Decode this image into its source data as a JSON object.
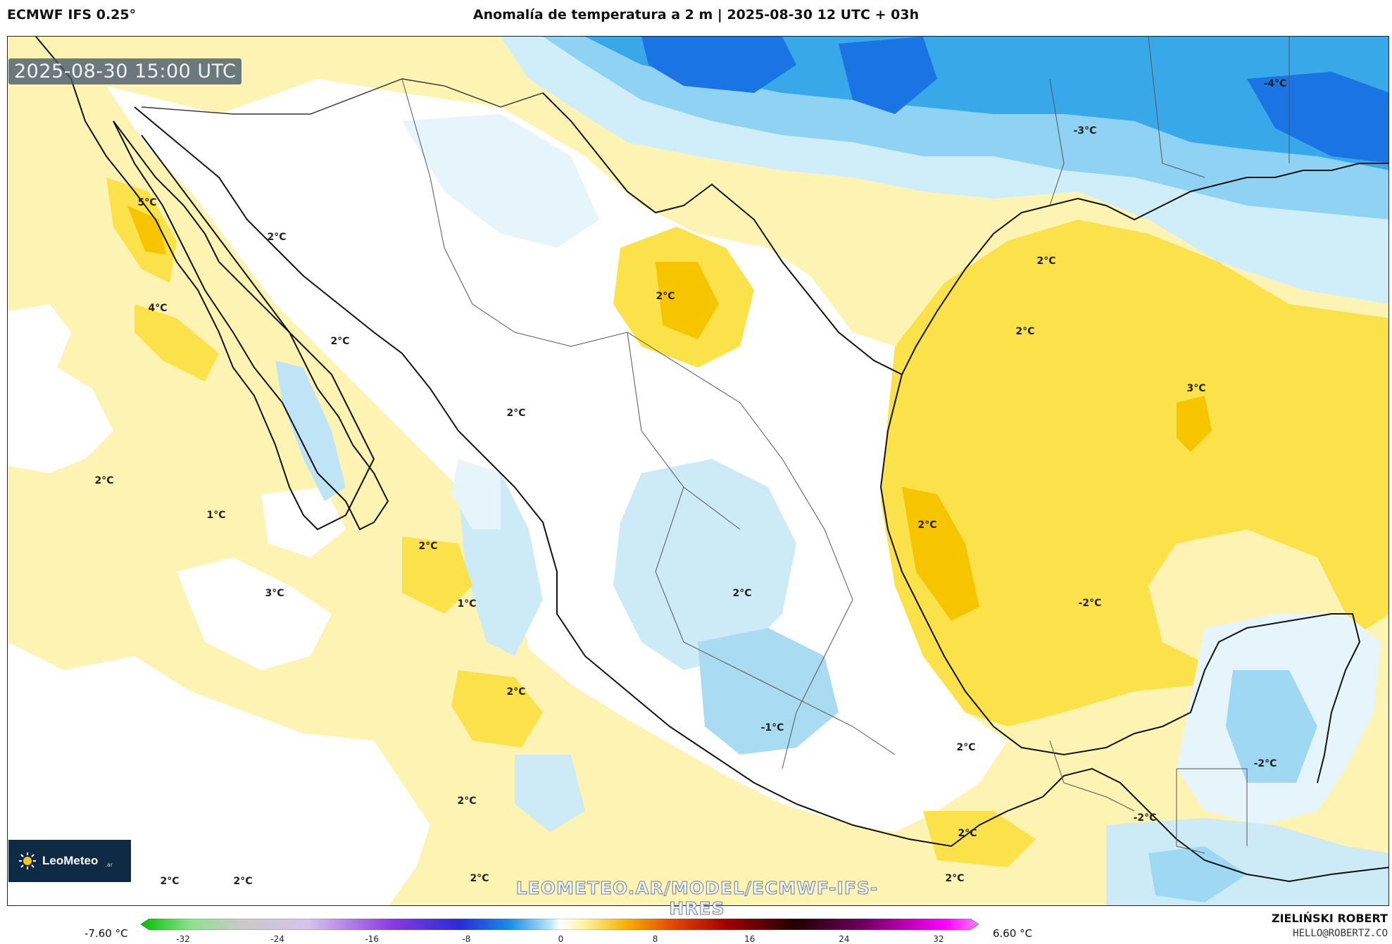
{
  "header": {
    "model": "ECMWF IFS 0.25°",
    "title": "Anomalía de temperatura a 2 m | 2025-08-30 12 UTC + 03h"
  },
  "timestamp": "2025-08-30 15:00 UTC",
  "watermark": "LEOMETEO.AR/MODEL/ECMWF-IFS-HRES",
  "logo": {
    "text": "LeoMeteo",
    "suffix": ".ar"
  },
  "colorbar": {
    "min_label": "-7.60 °C",
    "max_label": "6.60 °C",
    "ticks": [
      "-32",
      "-24",
      "-16",
      "-8",
      "0",
      "8",
      "16",
      "24",
      "32"
    ]
  },
  "credit": {
    "author": "ZIELIŃSKI ROBERT",
    "email": "HELLO@ROBERTZ.CO"
  },
  "contour_labels": [
    "-4°C",
    "-3°C",
    "5°C",
    "2°C",
    "4°C",
    "2°C",
    "2°C",
    "2°C",
    "2°C",
    "2°C",
    "3°C",
    "2°C",
    "1°C",
    "2°C",
    "2°C",
    "3°C",
    "1°C",
    "2°C",
    "-2°C",
    "2°C",
    "2°C",
    "-1°C",
    "-2°C",
    "-2°C",
    "2°C",
    "2°C",
    "2°C",
    "2°C",
    "2°C",
    "2°C"
  ],
  "colors": {
    "warm_light": "#fdf4b4",
    "warm": "#fce24a",
    "warm_strong": "#f7c400",
    "cool_light": "#e6f4fb",
    "cool": "#9fd8f2",
    "cool_strong": "#38a8e8",
    "cold": "#1a74e4",
    "coast": "#111111"
  }
}
